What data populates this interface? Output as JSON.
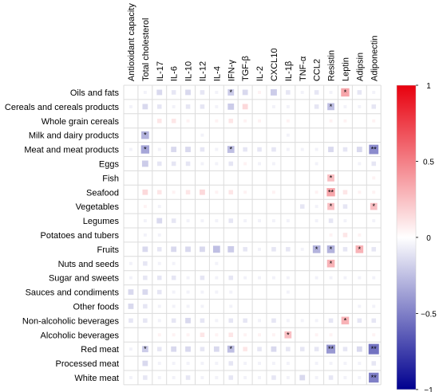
{
  "chart_data": {
    "type": "heatmap",
    "title": "",
    "rows": [
      "Oils and fats",
      "Cereals and cereals products",
      "Whole grain cereals",
      "Milk and dairy products",
      "Meat and meat products",
      "Eggs",
      "Fish",
      "Seafood",
      "Vegetables",
      "Legumes",
      "Potatoes and tubers",
      "Fruits",
      "Nuts and seeds",
      "Sugar and sweets",
      "Sauces and condiments",
      "Other foods",
      "Non-alcoholic beverages",
      "Alcoholic beverages",
      "Red meat",
      "Processed meat",
      "White meat"
    ],
    "columns": [
      "Antioxidant capacity",
      "Total cholesterol",
      "IL-17",
      "IL-6",
      "IL-10",
      "IL-12",
      "IL-4",
      "IFN-γ",
      "TGF-β",
      "IL-2",
      "CXCL10",
      "IL-1β",
      "TNF-α",
      "CCL2",
      "Resistin",
      "Leptin",
      "Adipsin",
      "Adiponectin"
    ],
    "values": [
      [
        0.0,
        -0.05,
        -0.15,
        -0.1,
        -0.15,
        -0.1,
        -0.05,
        -0.2,
        -0.15,
        0.05,
        -0.2,
        -0.1,
        -0.05,
        -0.1,
        -0.05,
        0.35,
        -0.1,
        -0.05
      ],
      [
        -0.05,
        -0.15,
        -0.1,
        -0.05,
        -0.1,
        -0.1,
        -0.05,
        -0.2,
        0.15,
        0.0,
        -0.05,
        -0.05,
        0.0,
        -0.1,
        -0.25,
        -0.05,
        -0.05,
        -0.1
      ],
      [
        0.0,
        0.0,
        0.1,
        0.1,
        0.05,
        0.0,
        0.05,
        0.1,
        0.05,
        0.05,
        0.0,
        0.05,
        0.0,
        0.0,
        0.05,
        0.05,
        0.0,
        0.05
      ],
      [
        0.0,
        -0.3,
        0.0,
        0.0,
        0.0,
        -0.05,
        0.0,
        0.0,
        0.0,
        0.0,
        0.0,
        -0.05,
        0.0,
        0.0,
        0.0,
        0.0,
        0.0,
        0.0
      ],
      [
        -0.05,
        -0.35,
        -0.05,
        -0.15,
        -0.15,
        -0.1,
        -0.05,
        -0.25,
        -0.1,
        -0.1,
        -0.1,
        -0.05,
        -0.05,
        -0.05,
        -0.15,
        -0.1,
        -0.15,
        -0.45
      ],
      [
        0.0,
        -0.2,
        -0.1,
        -0.1,
        -0.1,
        -0.05,
        -0.05,
        -0.1,
        0.05,
        -0.05,
        -0.05,
        0.0,
        0.0,
        -0.05,
        0.0,
        0.0,
        -0.05,
        -0.1
      ],
      [
        0.0,
        0.0,
        0.0,
        0.0,
        0.0,
        0.0,
        0.0,
        0.0,
        0.0,
        0.0,
        0.0,
        0.0,
        0.0,
        0.0,
        0.25,
        0.0,
        0.0,
        0.05
      ],
      [
        0.0,
        0.15,
        0.1,
        0.05,
        0.1,
        0.15,
        0.05,
        0.1,
        0.05,
        0.0,
        0.05,
        0.0,
        0.0,
        0.05,
        0.35,
        0.1,
        0.05,
        0.05
      ],
      [
        0.0,
        0.05,
        -0.05,
        0.0,
        0.0,
        0.0,
        0.0,
        0.0,
        0.0,
        0.0,
        0.0,
        0.0,
        -0.1,
        -0.05,
        0.25,
        -0.1,
        0.0,
        0.25
      ],
      [
        0.0,
        -0.05,
        -0.15,
        -0.1,
        -0.05,
        -0.05,
        -0.05,
        -0.1,
        -0.05,
        -0.05,
        -0.05,
        -0.05,
        0.0,
        -0.05,
        -0.1,
        -0.05,
        0.0,
        -0.05
      ],
      [
        0.0,
        -0.05,
        -0.05,
        0.0,
        0.0,
        0.0,
        0.0,
        0.0,
        0.0,
        0.0,
        0.0,
        0.0,
        0.0,
        0.0,
        0.05,
        0.1,
        0.05,
        0.0
      ],
      [
        0.0,
        -0.15,
        -0.1,
        -0.15,
        -0.15,
        -0.15,
        -0.25,
        -0.2,
        -0.1,
        -0.05,
        -0.1,
        -0.1,
        -0.05,
        -0.3,
        -0.3,
        -0.1,
        0.3,
        -0.1
      ],
      [
        -0.05,
        -0.1,
        -0.05,
        -0.05,
        0.0,
        0.0,
        -0.05,
        0.0,
        0.0,
        0.0,
        0.0,
        0.0,
        0.0,
        0.0,
        0.3,
        0.0,
        0.0,
        0.0
      ],
      [
        -0.05,
        -0.1,
        -0.1,
        -0.1,
        -0.05,
        -0.1,
        -0.05,
        -0.1,
        -0.05,
        -0.05,
        -0.05,
        -0.05,
        0.0,
        -0.05,
        -0.05,
        -0.05,
        -0.05,
        -0.05
      ],
      [
        -0.15,
        -0.15,
        -0.1,
        -0.05,
        -0.05,
        -0.05,
        -0.05,
        -0.05,
        0.0,
        0.0,
        0.0,
        -0.05,
        0.0,
        0.0,
        0.0,
        0.0,
        0.0,
        0.0
      ],
      [
        -0.15,
        -0.1,
        -0.05,
        -0.05,
        -0.05,
        -0.05,
        0.0,
        -0.05,
        0.0,
        0.0,
        0.0,
        0.0,
        0.0,
        0.0,
        0.0,
        0.0,
        -0.05,
        -0.05
      ],
      [
        -0.1,
        -0.1,
        -0.05,
        -0.1,
        -0.15,
        -0.1,
        -0.05,
        -0.1,
        -0.1,
        -0.05,
        -0.1,
        -0.05,
        -0.05,
        -0.05,
        -0.1,
        0.3,
        -0.1,
        -0.1
      ],
      [
        0.0,
        0.0,
        0.05,
        0.05,
        0.05,
        0.1,
        0.05,
        0.1,
        0.05,
        0.05,
        0.05,
        0.25,
        0.0,
        0.05,
        0.05,
        0.0,
        0.0,
        0.05
      ],
      [
        -0.05,
        -0.2,
        -0.1,
        -0.15,
        -0.15,
        -0.1,
        -0.15,
        -0.25,
        0.1,
        -0.1,
        -0.15,
        -0.1,
        -0.1,
        -0.1,
        -0.4,
        -0.1,
        -0.15,
        -0.55
      ],
      [
        0.0,
        -0.15,
        -0.05,
        -0.05,
        -0.05,
        -0.05,
        -0.05,
        -0.1,
        -0.05,
        -0.05,
        -0.05,
        -0.05,
        0.0,
        -0.05,
        -0.05,
        -0.05,
        -0.05,
        -0.1
      ],
      [
        -0.05,
        -0.1,
        -0.05,
        -0.05,
        -0.1,
        -0.05,
        -0.05,
        -0.1,
        -0.05,
        -0.05,
        -0.1,
        -0.05,
        -0.15,
        -0.05,
        -0.1,
        -0.05,
        -0.05,
        -0.5
      ]
    ],
    "significance": [
      [
        "",
        "",
        "",
        "",
        "",
        "",
        "",
        "*",
        "",
        "",
        "",
        "",
        "",
        "",
        "",
        "*",
        "",
        ""
      ],
      [
        "",
        "",
        "",
        "",
        "",
        "",
        "",
        "",
        "",
        "",
        "",
        "",
        "",
        "",
        "*",
        "",
        "",
        ""
      ],
      [
        "",
        "",
        "",
        "",
        "",
        "",
        "",
        "",
        "",
        "",
        "",
        "",
        "",
        "",
        "",
        "",
        "",
        ""
      ],
      [
        "",
        "*",
        "",
        "",
        "",
        "",
        "",
        "",
        "",
        "",
        "",
        "",
        "",
        "",
        "",
        "",
        "",
        ""
      ],
      [
        "",
        "*",
        "",
        "",
        "",
        "",
        "",
        "*",
        "",
        "",
        "",
        "",
        "",
        "",
        "",
        "",
        "",
        "**"
      ],
      [
        "",
        "",
        "",
        "",
        "",
        "",
        "",
        "",
        "",
        "",
        "",
        "",
        "",
        "",
        "",
        "",
        "",
        ""
      ],
      [
        "",
        "",
        "",
        "",
        "",
        "",
        "",
        "",
        "",
        "",
        "",
        "",
        "",
        "",
        "*",
        "",
        "",
        ""
      ],
      [
        "",
        "",
        "",
        "",
        "",
        "",
        "",
        "",
        "",
        "",
        "",
        "",
        "",
        "",
        "**",
        "",
        "",
        ""
      ],
      [
        "",
        "",
        "",
        "",
        "",
        "",
        "",
        "",
        "",
        "",
        "",
        "",
        "",
        "",
        "*",
        "",
        "",
        "*"
      ],
      [
        "",
        "",
        "",
        "",
        "",
        "",
        "",
        "",
        "",
        "",
        "",
        "",
        "",
        "",
        "",
        "",
        "",
        ""
      ],
      [
        "",
        "",
        "",
        "",
        "",
        "",
        "",
        "",
        "",
        "",
        "",
        "",
        "",
        "",
        "",
        "",
        "",
        ""
      ],
      [
        "",
        "",
        "",
        "",
        "",
        "",
        "",
        "",
        "",
        "",
        "",
        "",
        "",
        "*",
        "*",
        "",
        "*",
        ""
      ],
      [
        "",
        "",
        "",
        "",
        "",
        "",
        "",
        "",
        "",
        "",
        "",
        "",
        "",
        "",
        "*",
        "",
        "",
        ""
      ],
      [
        "",
        "",
        "",
        "",
        "",
        "",
        "",
        "",
        "",
        "",
        "",
        "",
        "",
        "",
        "",
        "",
        "",
        ""
      ],
      [
        "",
        "",
        "",
        "",
        "",
        "",
        "",
        "",
        "",
        "",
        "",
        "",
        "",
        "",
        "",
        "",
        "",
        ""
      ],
      [
        "",
        "",
        "",
        "",
        "",
        "",
        "",
        "",
        "",
        "",
        "",
        "",
        "",
        "",
        "",
        "",
        "",
        ""
      ],
      [
        "",
        "",
        "",
        "",
        "",
        "",
        "",
        "",
        "",
        "",
        "",
        "",
        "",
        "",
        "",
        "*",
        "",
        ""
      ],
      [
        "",
        "",
        "",
        "",
        "",
        "",
        "",
        "",
        "",
        "",
        "",
        "*",
        "",
        "",
        "",
        "",
        "",
        ""
      ],
      [
        "",
        "*",
        "",
        "",
        "",
        "",
        "",
        "*",
        "",
        "",
        "",
        "",
        "",
        "",
        "**",
        "",
        "",
        "**"
      ],
      [
        "",
        "",
        "",
        "",
        "",
        "",
        "",
        "",
        "",
        "",
        "",
        "",
        "",
        "",
        "",
        "",
        "",
        ""
      ],
      [
        "",
        "",
        "",
        "",
        "",
        "",
        "",
        "",
        "",
        "",
        "",
        "",
        "",
        "",
        "",
        "",
        "",
        "**"
      ]
    ],
    "colorbar": {
      "range": [
        -1,
        1
      ],
      "ticks": [
        1,
        0.5,
        0,
        -0.5,
        -1
      ],
      "tick_labels": [
        "1",
        "0.5",
        "0",
        "−0.5",
        "−1"
      ],
      "colors": {
        "positive": "#e8000e",
        "neutral": "#ffffff",
        "negative": "#00008f"
      }
    },
    "grid": true,
    "legend": "right"
  }
}
